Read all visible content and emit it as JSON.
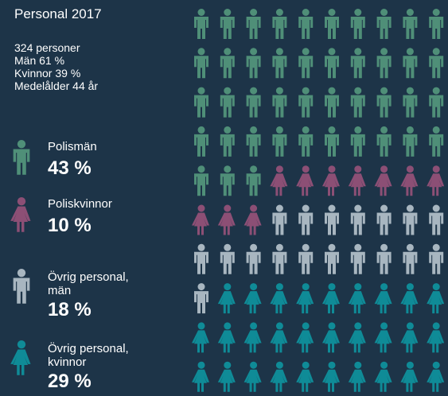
{
  "chart_data": {
    "type": "pictogram",
    "title": "Personal 2017",
    "notes": [
      "324 personer",
      "Män 61 %",
      "Kvinnor 39 %",
      "Medelålder 44 år"
    ],
    "series": [
      {
        "name": "Polismän",
        "color": "#4f8f78",
        "icon": "man",
        "values": [
          43
        ],
        "value_labels": [
          "43 %"
        ]
      },
      {
        "name": "Poliskvinnor",
        "color": "#8c4f75",
        "icon": "woman",
        "values": [
          10
        ],
        "value_labels": [
          "10 %"
        ]
      },
      {
        "name": "Övrig personal, män",
        "color": "#a8b6c0",
        "icon": "man",
        "values": [
          18
        ],
        "value_labels": [
          "18 %"
        ]
      },
      {
        "name": "Övrig personal, kvinnor",
        "color": "#0f8b97",
        "icon": "woman",
        "values": [
          29
        ],
        "value_labels": [
          "29 %"
        ]
      }
    ]
  }
}
